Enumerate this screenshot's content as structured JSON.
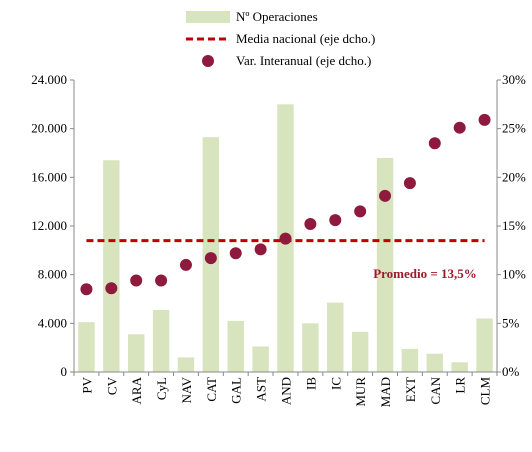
{
  "chart_data": {
    "type": "bar",
    "categories": [
      "PV",
      "CV",
      "ARA",
      "CyL",
      "NAV",
      "CAT",
      "GAL",
      "AST",
      "AND",
      "IB",
      "IC",
      "MUR",
      "MAD",
      "EXT",
      "CAN",
      "LR",
      "CLM"
    ],
    "series": [
      {
        "name": "Nº Operaciones",
        "type": "bar",
        "color": "#d7e4bd",
        "values": [
          4100,
          17400,
          3100,
          5100,
          1200,
          19300,
          4200,
          2100,
          22000,
          4000,
          5700,
          3300,
          17600,
          1900,
          1500,
          800,
          4400
        ]
      },
      {
        "name": "Media nacional (eje dcho.)",
        "type": "line",
        "axis": "y2",
        "color": "#c00000",
        "values": [
          13.5,
          13.5,
          13.5,
          13.5,
          13.5,
          13.5,
          13.5,
          13.5,
          13.5,
          13.5,
          13.5,
          13.5,
          13.5,
          13.5,
          13.5,
          13.5,
          13.5
        ]
      },
      {
        "name": "Var. Interanual (eje dcho.)",
        "type": "scatter",
        "axis": "y2",
        "color": "#8e1b3d",
        "values": [
          8.5,
          8.6,
          9.4,
          9.4,
          11.0,
          11.7,
          12.2,
          12.6,
          13.7,
          15.2,
          15.6,
          16.5,
          18.1,
          19.4,
          23.5,
          25.1,
          25.9
        ]
      }
    ],
    "annotation": "Promedio = 13,5%",
    "ylim": [
      0,
      24000
    ],
    "yticks": [
      0,
      {
        "value": 4000,
        "label": "4.000"
      },
      {
        "value": 8000,
        "label": "8.000"
      },
      {
        "value": 12000,
        "label": "12.000"
      },
      {
        "value": 16000,
        "label": "16.000"
      },
      {
        "value": 20000,
        "label": "20.000"
      },
      {
        "value": 24000,
        "label": "24.000"
      }
    ],
    "y2lim": [
      0,
      30
    ],
    "y2ticks": [
      {
        "value": 0,
        "label": "0%"
      },
      {
        "value": 5,
        "label": "5%"
      },
      {
        "value": 10,
        "label": "10%"
      },
      {
        "value": 15,
        "label": "15%"
      },
      {
        "value": 20,
        "label": "20%"
      },
      {
        "value": 25,
        "label": "25%"
      },
      {
        "value": 30,
        "label": "30%"
      }
    ],
    "grid": false,
    "legend": "top"
  }
}
